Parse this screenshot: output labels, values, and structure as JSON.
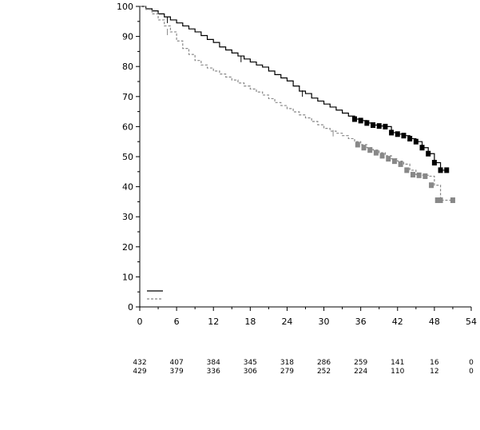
{
  "chart_data": {
    "type": "line",
    "title": "",
    "xlabel": "",
    "ylabel": "",
    "xlim": [
      0,
      54
    ],
    "ylim": [
      0,
      100
    ],
    "x_ticks": [
      0,
      6,
      12,
      18,
      24,
      30,
      36,
      42,
      48,
      54
    ],
    "y_ticks": [
      0,
      10,
      20,
      30,
      40,
      50,
      60,
      70,
      80,
      90,
      100
    ],
    "grid": false,
    "legend": {
      "placement": "bottom-left",
      "entries": [
        {
          "style": "solid",
          "color": "#000000",
          "label": ""
        },
        {
          "style": "dashed",
          "color": "#888888",
          "label": ""
        }
      ]
    },
    "series": [
      {
        "style": "solid",
        "color": "#000000",
        "x": [
          0,
          1,
          2,
          3,
          4,
          5,
          6,
          7,
          8,
          9,
          10,
          11,
          12,
          13,
          14,
          15,
          16,
          17,
          18,
          19,
          20,
          21,
          22,
          23,
          24,
          25,
          26,
          27,
          28,
          29,
          30,
          31,
          32,
          33,
          34,
          35,
          36,
          37,
          38,
          39,
          40,
          41,
          42,
          43,
          44,
          45,
          46,
          47,
          48,
          49,
          50
        ],
        "y": [
          100,
          99.2,
          98.5,
          97.5,
          96.5,
          95.5,
          94.5,
          93.5,
          92.5,
          91.5,
          90.3,
          89,
          88,
          86.5,
          85.5,
          84.5,
          83.5,
          82.5,
          81.5,
          80.5,
          79.8,
          78.5,
          77.3,
          76.2,
          75.2,
          73.5,
          71.8,
          71,
          69.5,
          68.5,
          67.5,
          66.5,
          65.5,
          64.5,
          63.5,
          62.5,
          62,
          61.2,
          60.5,
          60.2,
          60,
          58,
          57.5,
          57,
          56,
          55,
          53,
          51,
          48,
          45.5,
          45.5
        ],
        "censor_x": [
          4.5,
          16.5,
          26.5,
          35,
          36,
          37,
          38,
          39,
          40,
          41,
          42,
          43,
          44,
          45,
          46,
          47,
          48,
          49,
          50
        ]
      },
      {
        "style": "dashed",
        "color": "#888888",
        "x": [
          0,
          1,
          2,
          3,
          4,
          5,
          6,
          7,
          8,
          9,
          10,
          11,
          12,
          13,
          14,
          15,
          16,
          17,
          18,
          19,
          20,
          21,
          22,
          23,
          24,
          25,
          26,
          27,
          28,
          29,
          30,
          31,
          32,
          33,
          34,
          35,
          36,
          37,
          38,
          39,
          40,
          41,
          42,
          43,
          44,
          45,
          46,
          47,
          48,
          49,
          50,
          51
        ],
        "y": [
          100,
          99,
          97.5,
          95.5,
          93.5,
          91.5,
          88.5,
          86,
          84,
          82,
          80.5,
          79.5,
          78.5,
          77.5,
          76.5,
          75.5,
          74.5,
          73.5,
          72.5,
          71.5,
          70.5,
          69.3,
          68,
          67,
          66,
          64.9,
          63.9,
          62.9,
          61.7,
          60.6,
          59.4,
          58.5,
          57.8,
          57,
          56,
          55,
          54,
          53,
          52.2,
          51.3,
          50.3,
          49.3,
          48.5,
          47.5,
          45.5,
          44,
          43.8,
          43.5,
          40.5,
          35.5,
          35.5,
          35.5
        ],
        "censor_x": [
          4.5,
          31.5,
          35.5,
          36.5,
          37.5,
          38.5,
          39.5,
          40.5,
          41.5,
          42.5,
          43.5,
          44.5,
          45.5,
          46.5,
          47.5,
          48.5,
          49,
          51
        ]
      }
    ],
    "risk_table": {
      "times": [
        0,
        6,
        12,
        18,
        24,
        30,
        36,
        42,
        48,
        54
      ],
      "rows": [
        [
          "432",
          "407",
          "384",
          "345",
          "318",
          "286",
          "259",
          "141",
          "16",
          "0"
        ],
        [
          "429",
          "379",
          "336",
          "306",
          "279",
          "252",
          "224",
          "110",
          "12",
          "0"
        ]
      ]
    }
  }
}
